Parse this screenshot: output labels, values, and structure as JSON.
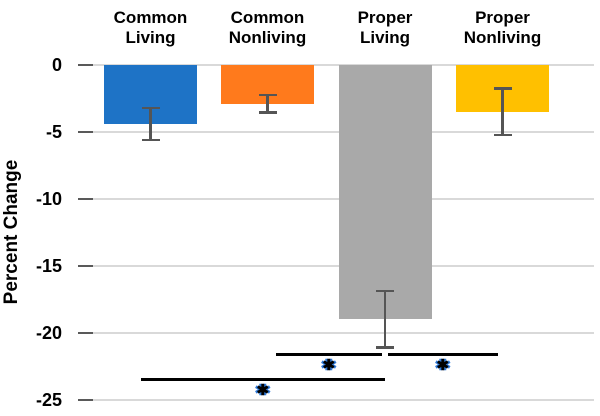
{
  "chart_data": {
    "type": "bar",
    "orientation": "vertical",
    "title": "",
    "ylabel": "Percent Change",
    "xlabel": "",
    "categories": [
      "Common Living",
      "Common Nonliving",
      "Proper Living",
      "Proper Nonliving"
    ],
    "category_labels": [
      [
        "Common",
        "Living"
      ],
      [
        "Common",
        "Nonliving"
      ],
      [
        "Proper",
        "Living"
      ],
      [
        "Proper",
        "Nonliving"
      ]
    ],
    "values": [
      -4.4,
      -2.9,
      -19.0,
      -3.5
    ],
    "error_bars": [
      1.2,
      0.65,
      2.1,
      1.75
    ],
    "bar_colors": [
      "#1e73c6",
      "#ff7a1c",
      "#a9a9a9",
      "#ffc000"
    ],
    "error_bar_color": "#555555",
    "yticks": [
      0,
      -5,
      -10,
      -15,
      -20,
      -25
    ],
    "ytick_labels": [
      "0",
      "-5",
      "-10",
      "-15",
      "-20",
      "-25"
    ],
    "ylim": [
      0,
      -25
    ],
    "grid": true,
    "gridline_color": "#d9d9d9",
    "legend": "none",
    "annotations": [
      {
        "between": [
          "Common Living",
          "Proper Living"
        ],
        "pair": [
          0,
          2
        ],
        "label": "✱",
        "line_y": -23.5
      },
      {
        "between": [
          "Common Nonliving",
          "Proper Living"
        ],
        "pair": [
          1,
          2
        ],
        "label": "✱",
        "line_y": -21.6
      },
      {
        "between": [
          "Proper Living",
          "Proper Nonliving"
        ],
        "pair": [
          2,
          3
        ],
        "label": "✱",
        "line_y": -21.6
      }
    ]
  }
}
